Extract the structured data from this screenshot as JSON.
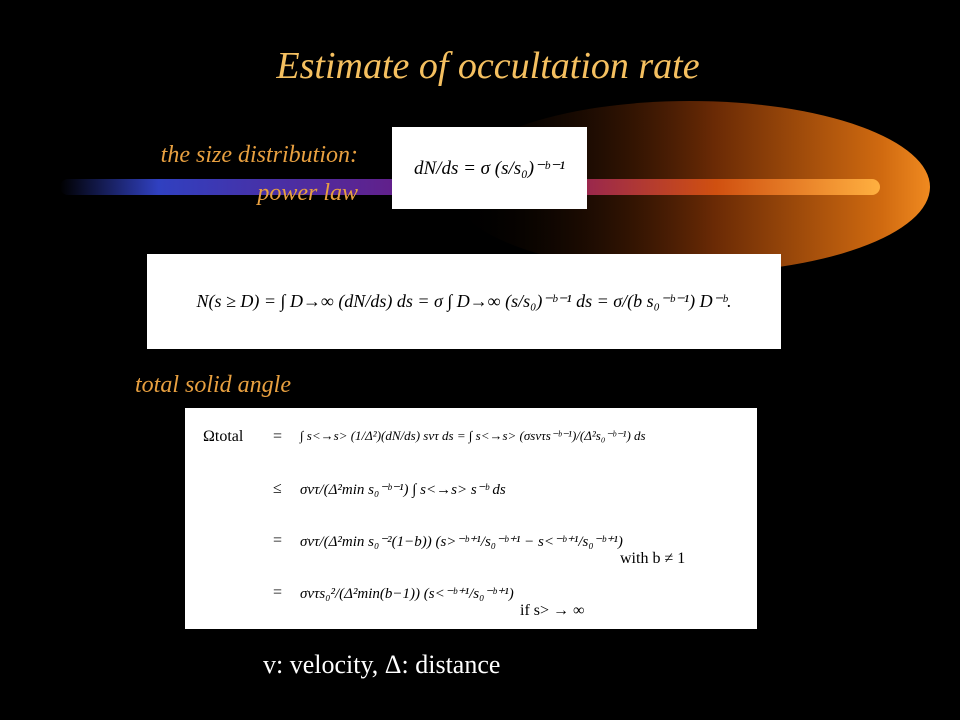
{
  "title": "Estimate of occultation rate",
  "size_label": [
    "the size distribution:",
    "power law"
  ],
  "eq_size": "dN/ds = σ (s/s₀)⁻ᵇ⁻¹",
  "eq_number": "N(s ≥ D) = ∫ D→∞ (dN/ds) ds = σ ∫ D→∞ (s/s₀)⁻ᵇ⁻¹ ds = σ/(b s₀⁻ᵇ⁻¹) D⁻ᵇ.",
  "angle_label": "total solid angle",
  "eq_angle": {
    "lhs": "Ωtotal",
    "rows": [
      {
        "rel": "=",
        "rhs": "∫ s<→s> (1/Δ²)(dN/ds) svτ ds = ∫ s<→s> (σsvτs⁻ᵇ⁻¹)/(Δ²s₀⁻ᵇ⁻¹) ds",
        "cond": null
      },
      {
        "rel": "≤",
        "rhs": "σvτ/(Δ²min s₀⁻ᵇ⁻¹) ∫ s<→s> s⁻ᵇ ds",
        "cond": null
      },
      {
        "rel": "=",
        "rhs": "σvτ/(Δ²min s₀⁻²(1−b)) (s>⁻ᵇ⁺¹/s₀⁻ᵇ⁺¹ − s<⁻ᵇ⁺¹/s₀⁻ᵇ⁺¹)",
        "cond": "with  b ≠ 1"
      },
      {
        "rel": "=",
        "rhs": "σvτs₀²/(Δ²min(b−1)) (s<⁻ᵇ⁺¹/s₀⁻ᵇ⁺¹)",
        "cond": "if  s> → ∞"
      }
    ]
  },
  "footer": "v: velocity, Δ: distance"
}
